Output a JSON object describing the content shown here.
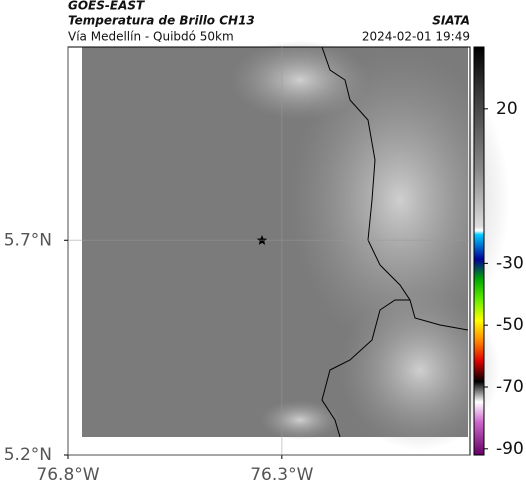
{
  "header": {
    "source": "GOES-EAST",
    "title": "Temperatura de Brillo CH13",
    "agency": "SIATA",
    "subtitle": "Vía Medellín - Quibdó 50km",
    "datetime": "2024-02-01 19:49"
  },
  "map": {
    "xlim": [
      -76.8,
      -75.86
    ],
    "ylim": [
      5.2,
      6.15
    ],
    "xticks": [
      {
        "value": -76.8,
        "label": "76.8°W"
      },
      {
        "value": -76.3,
        "label": "76.3°W"
      }
    ],
    "yticks": [
      {
        "value": 5.7,
        "label": "5.7°N"
      },
      {
        "value": 5.2,
        "label": "5.2°N"
      }
    ]
  },
  "colorbar": {
    "lim": [
      -92,
      40
    ],
    "ticks": [
      20,
      -30,
      -50,
      -70,
      -90
    ]
  }
}
